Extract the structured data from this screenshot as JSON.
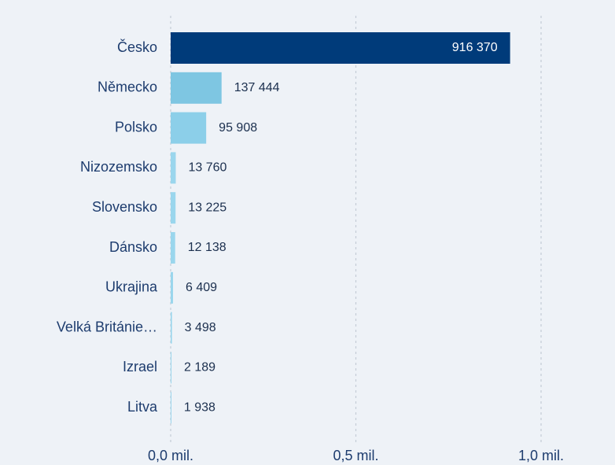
{
  "chart_data": {
    "type": "hbar",
    "categories": [
      "Česko",
      "Německo",
      "Polsko",
      "Nizozemsko",
      "Slovensko",
      "Dánsko",
      "Ukrajina",
      "Velká Británie…",
      "Izrael",
      "Litva"
    ],
    "values": [
      916370,
      137444,
      95908,
      13760,
      13225,
      12138,
      6409,
      3498,
      2189,
      1938
    ],
    "value_labels": [
      "916 370",
      "137 444",
      "95 908",
      "13 760",
      "13 225",
      "12 138",
      "6 409",
      "3 498",
      "2 189",
      "1 938"
    ],
    "colors": [
      "#003b7a",
      "#7ec6e2",
      "#8ccfe9",
      "#9ad6ed",
      "#9ad6ed",
      "#9ad6ed",
      "#9ad6ed",
      "#9ad6ed",
      "#9ad6ed",
      "#9ad6ed"
    ],
    "xlim": [
      0,
      1000000
    ],
    "xticks": [
      {
        "value": 0,
        "label": "0,0 mil."
      },
      {
        "value": 500000,
        "label": "0,5 mil."
      },
      {
        "value": 1000000,
        "label": "1,0 mil."
      }
    ],
    "grid": true
  }
}
